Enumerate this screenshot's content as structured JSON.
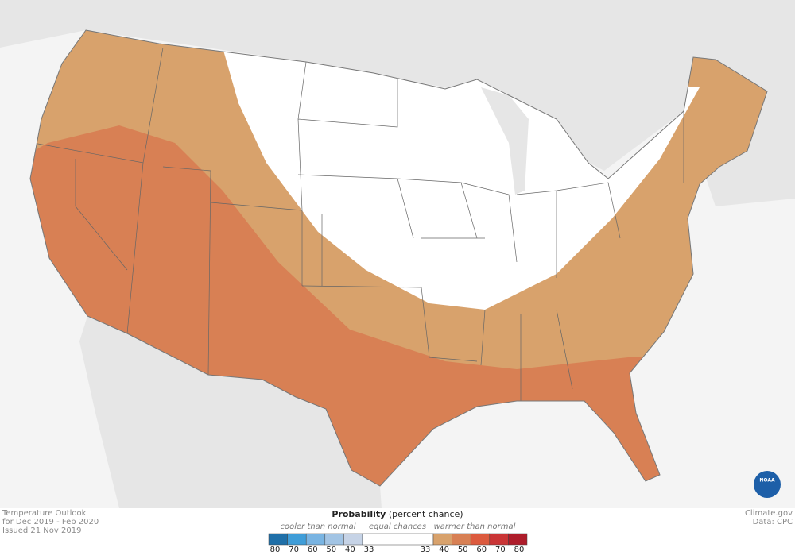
{
  "info": {
    "lines": [
      "Temperature Outlook",
      "for Dec 2019 - Feb 2020",
      "Issued 21 Nov 2019"
    ]
  },
  "credit": {
    "lines": [
      "Climate.gov",
      "Data: CPC"
    ]
  },
  "logo": "NOAA",
  "legend": {
    "title": "Probability",
    "title_note": "(percent chance)",
    "cooler": "cooler than normal",
    "equal": "equal chances",
    "warmer": "warmer than normal",
    "cool_colors": [
      "#1f6fa8",
      "#3f9dd8",
      "#79b4e2",
      "#a2c4e4",
      "#c6d3e6"
    ],
    "equal_color": "#ffffff",
    "warm_colors": [
      "#d8a26c",
      "#d88054",
      "#dc5a3e",
      "#ca3536",
      "#ae1c2a"
    ],
    "cool_ticks": [
      "80",
      "70",
      "60",
      "50",
      "40",
      "33"
    ],
    "warm_ticks": [
      "33",
      "40",
      "50",
      "60",
      "70",
      "80"
    ]
  }
}
